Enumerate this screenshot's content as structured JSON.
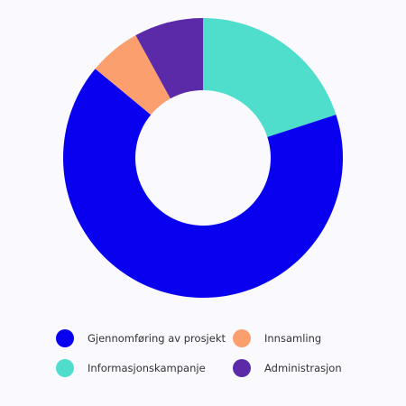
{
  "chart_data": {
    "type": "pie",
    "donut": true,
    "title": "",
    "legend_position": "bottom",
    "slices": [
      {
        "label": "Informasjonskampanje",
        "value": 20,
        "color": "#4fdecb"
      },
      {
        "label": "Gjennomføring av prosjekt",
        "value": 66,
        "color": "#0a00f0"
      },
      {
        "label": "Innsamling",
        "value": 6,
        "color": "#fb9f6e"
      },
      {
        "label": "Administrasjon",
        "value": 8,
        "color": "#5b2aa8"
      }
    ],
    "legend_order": [
      1,
      2,
      0,
      3
    ]
  }
}
